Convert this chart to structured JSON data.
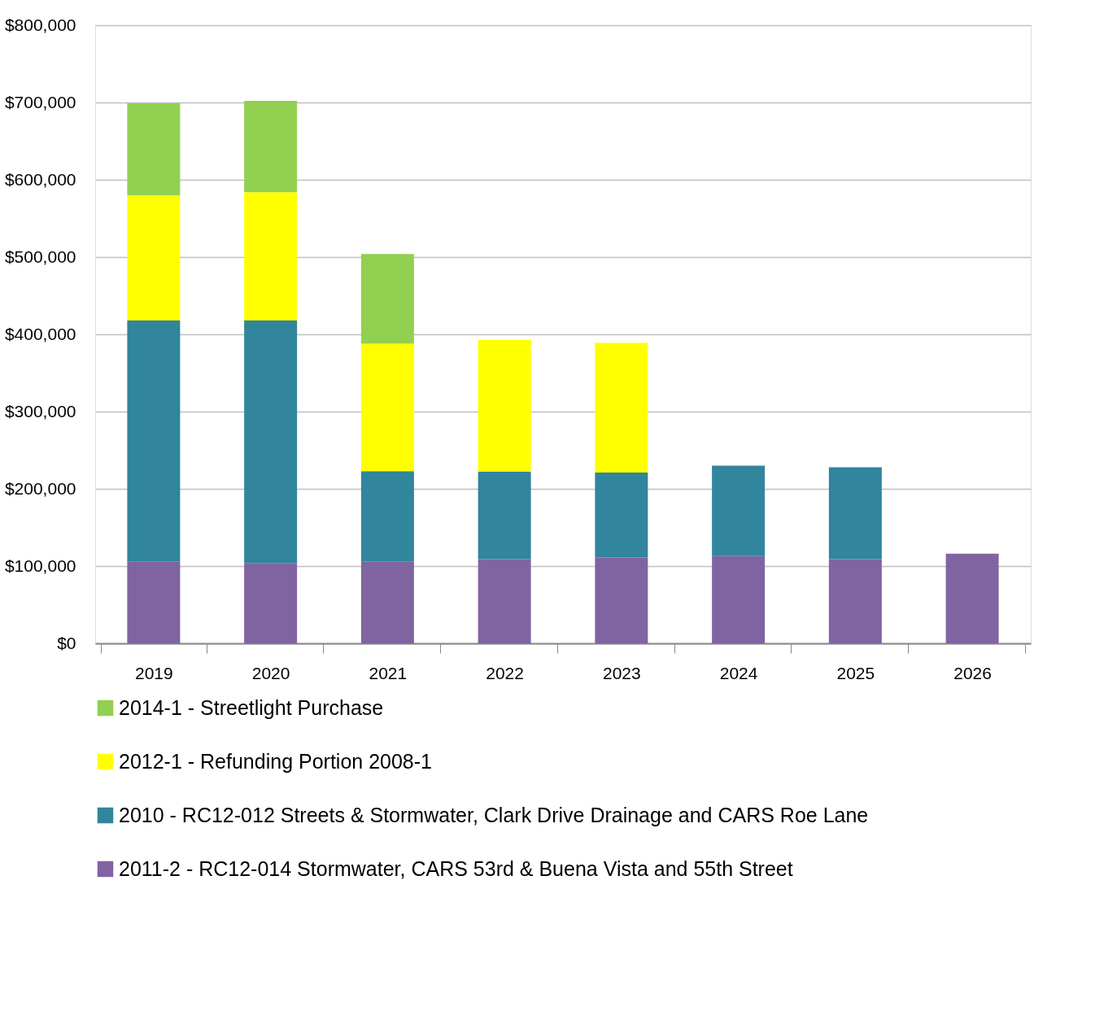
{
  "chart_data": {
    "type": "bar",
    "stacked": true,
    "categories": [
      "2019",
      "2020",
      "2021",
      "2022",
      "2023",
      "2024",
      "2025",
      "2026"
    ],
    "series": [
      {
        "name": "2011-2 - RC12-014 Stormwater, CARS 53rd & Buena Vista and 55th Street",
        "color": "#8064a2",
        "values": [
          106000,
          104000,
          106000,
          109000,
          111000,
          113000,
          109000,
          116000
        ]
      },
      {
        "name": "2010 - RC12-012 Streets & Stormwater, Clark Drive Drainage and CARS Roe Lane",
        "color": "#31859c",
        "values": [
          312000,
          314000,
          117000,
          113000,
          110000,
          117000,
          119000,
          null
        ]
      },
      {
        "name": "2012-1 - Refunding Portion 2008-1",
        "color": "#ffff00",
        "values": [
          162000,
          166000,
          165000,
          171000,
          168000,
          null,
          null,
          null
        ]
      },
      {
        "name": "2014-1 - Streetlight Purchase",
        "color": "#92d050",
        "values": [
          119000,
          118000,
          116000,
          null,
          null,
          null,
          null,
          null
        ]
      }
    ],
    "ylim": [
      0,
      800000
    ],
    "yticks": [
      {
        "value": 0,
        "label": "$0"
      },
      {
        "value": 100000,
        "label": "$100,000"
      },
      {
        "value": 200000,
        "label": "$200,000"
      },
      {
        "value": 300000,
        "label": "$300,000"
      },
      {
        "value": 400000,
        "label": "$400,000"
      },
      {
        "value": 500000,
        "label": "$500,000"
      },
      {
        "value": 600000,
        "label": "$600,000"
      },
      {
        "value": 700000,
        "label": "$700,000"
      },
      {
        "value": 800000,
        "label": "$800,000"
      }
    ],
    "grid": "y",
    "legend": "bottom"
  }
}
